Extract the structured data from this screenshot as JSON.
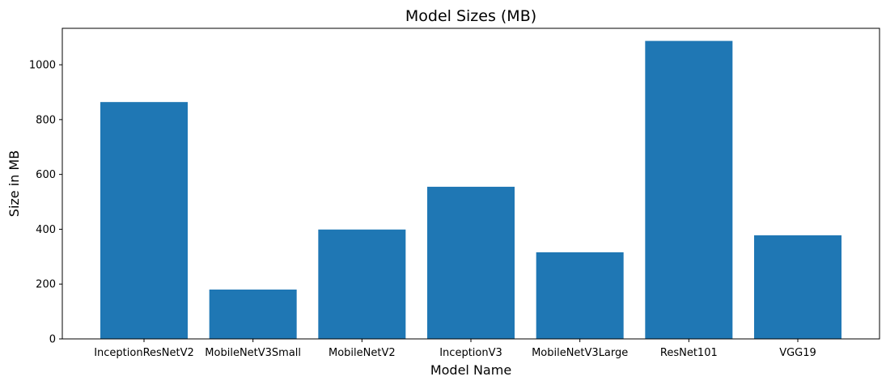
{
  "chart_data": {
    "type": "bar",
    "title": "Model Sizes (MB)",
    "xlabel": "Model Name",
    "ylabel": "Size in MB",
    "categories": [
      "InceptionResNetV2",
      "MobileNetV3Small",
      "MobileNetV2",
      "InceptionV3",
      "MobileNetV3Large",
      "ResNet101",
      "VGG19"
    ],
    "values": [
      864,
      180,
      399,
      555,
      316,
      1087,
      378
    ],
    "ylim": [
      0,
      1133
    ],
    "yticks": [
      0,
      200,
      400,
      600,
      800,
      1000
    ],
    "bar_color": "#1f77b4",
    "grid": false,
    "legend": false
  }
}
